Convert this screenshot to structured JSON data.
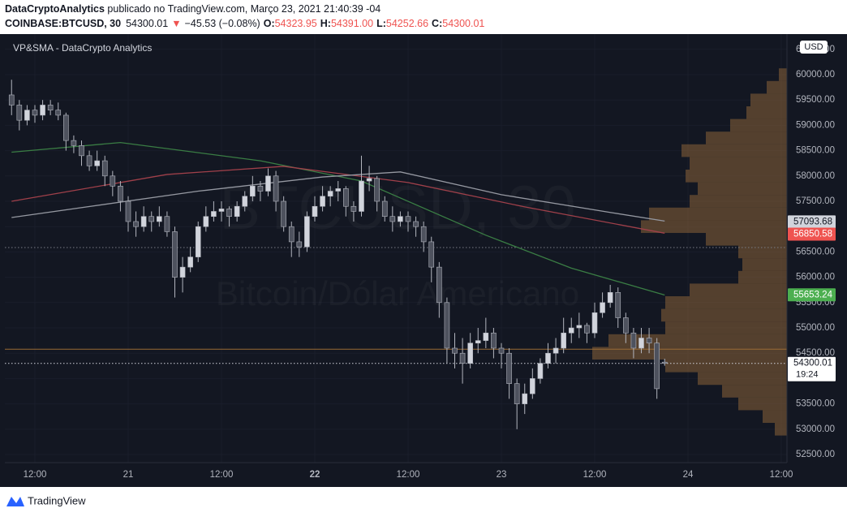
{
  "header": {
    "author": "DataCryptoAnalytics",
    "published": " publicado no TradingView.com, Março 23, 2021 21:40:39 -04",
    "symbol": "COINBASE:BTCUSD, 30",
    "last": "54300.01",
    "change": "−45.53 (−0.08%)",
    "ohlc": [
      {
        "label": "O:",
        "value": "54323.95"
      },
      {
        "label": "H:",
        "value": "54391.00"
      },
      {
        "label": "L:",
        "value": "54252.66"
      },
      {
        "label": "C:",
        "value": "54300.01"
      }
    ],
    "footer": "TradingView"
  },
  "chart_data": {
    "type": "candlestick",
    "title": "VP&SMA - DataCrypto Analytics",
    "watermark": "BTCUSD, 30",
    "watermark_sub": "Bitcoin/Dólar Americano",
    "currency": "USD",
    "countdown": "19:24",
    "up_color": "#d1d4dc",
    "down_color": "#4e525e",
    "x": [
      -3,
      -2,
      -1,
      0,
      1,
      2,
      3,
      4,
      5,
      6,
      7,
      8,
      9,
      10,
      11,
      12,
      13,
      14,
      15,
      16,
      17,
      18,
      19,
      20,
      21,
      22,
      23,
      24,
      25,
      26,
      27,
      28,
      29,
      30,
      31,
      32,
      33,
      34,
      35,
      36,
      37,
      38,
      39,
      40,
      41,
      42,
      43,
      44,
      45,
      46,
      47,
      48,
      49,
      50,
      51,
      52,
      53,
      54,
      55,
      56,
      57,
      58,
      59,
      60,
      61,
      62,
      63,
      64,
      65,
      66,
      67,
      68,
      69,
      70,
      71,
      72,
      73,
      74,
      75,
      76,
      77,
      78,
      79,
      80,
      81
    ],
    "candles": [
      [
        59600,
        59900,
        59200,
        59400
      ],
      [
        59400,
        59500,
        58900,
        59100
      ],
      [
        59100,
        59400,
        59000,
        59300
      ],
      [
        59300,
        59400,
        59050,
        59200
      ],
      [
        59200,
        59500,
        59100,
        59400
      ],
      [
        59400,
        59500,
        59200,
        59300
      ],
      [
        59300,
        59450,
        59100,
        59200
      ],
      [
        59200,
        59250,
        58500,
        58700
      ],
      [
        58700,
        58800,
        58450,
        58600
      ],
      [
        58600,
        58700,
        58200,
        58400
      ],
      [
        58400,
        58500,
        58100,
        58200
      ],
      [
        58200,
        58500,
        58100,
        58300
      ],
      [
        58300,
        58400,
        57800,
        58000
      ],
      [
        58000,
        58100,
        57600,
        57800
      ],
      [
        57800,
        57900,
        57300,
        57500
      ],
      [
        57500,
        57600,
        56900,
        57100
      ],
      [
        57100,
        57300,
        56800,
        57000
      ],
      [
        57000,
        57400,
        56900,
        57200
      ],
      [
        57200,
        57300,
        56900,
        57100
      ],
      [
        57100,
        57400,
        57000,
        57200
      ],
      [
        57200,
        57300,
        56800,
        56900
      ],
      [
        56900,
        57000,
        55600,
        56000
      ],
      [
        56000,
        56400,
        55700,
        56200
      ],
      [
        56200,
        56600,
        56100,
        56400
      ],
      [
        56400,
        57100,
        56300,
        57000
      ],
      [
        57000,
        57400,
        56900,
        57200
      ],
      [
        57200,
        57500,
        57100,
        57300
      ],
      [
        57300,
        57500,
        57100,
        57350
      ],
      [
        57350,
        57400,
        57000,
        57200
      ],
      [
        57200,
        57500,
        57100,
        57400
      ],
      [
        57400,
        57700,
        57300,
        57600
      ],
      [
        57600,
        58000,
        57500,
        57800
      ],
      [
        57800,
        57900,
        57500,
        57700
      ],
      [
        57700,
        58150,
        57600,
        58000
      ],
      [
        58000,
        58100,
        57300,
        57500
      ],
      [
        57500,
        57600,
        56900,
        57000
      ],
      [
        57000,
        57100,
        56400,
        56700
      ],
      [
        56700,
        56900,
        56400,
        56600
      ],
      [
        56600,
        57300,
        56500,
        57200
      ],
      [
        57200,
        57600,
        57100,
        57400
      ],
      [
        57400,
        57800,
        57300,
        57600
      ],
      [
        57600,
        57800,
        57400,
        57700
      ],
      [
        57700,
        57900,
        57500,
        57750
      ],
      [
        57750,
        57800,
        57200,
        57400
      ],
      [
        57400,
        57500,
        57100,
        57300
      ],
      [
        57300,
        58400,
        57200,
        57900
      ],
      [
        57900,
        58200,
        57700,
        57950
      ],
      [
        57950,
        58000,
        57300,
        57500
      ],
      [
        57500,
        57600,
        57100,
        57200
      ],
      [
        57200,
        57400,
        56900,
        57100
      ],
      [
        57100,
        57300,
        57000,
        57200
      ],
      [
        57200,
        57300,
        56900,
        57100
      ],
      [
        57100,
        57200,
        56800,
        57000
      ],
      [
        57000,
        57100,
        56500,
        56700
      ],
      [
        56700,
        56800,
        55900,
        56200
      ],
      [
        56200,
        56300,
        55200,
        55500
      ],
      [
        55500,
        55600,
        54300,
        54600
      ],
      [
        54600,
        54900,
        54200,
        54500
      ],
      [
        54500,
        54800,
        53900,
        54300
      ],
      [
        54300,
        54900,
        54200,
        54700
      ],
      [
        54700,
        55000,
        54500,
        54750
      ],
      [
        54750,
        55200,
        54600,
        54900
      ],
      [
        54900,
        55000,
        54400,
        54600
      ],
      [
        54600,
        54700,
        54200,
        54500
      ],
      [
        54500,
        54600,
        53600,
        53900
      ],
      [
        53900,
        54000,
        53000,
        53500
      ],
      [
        53500,
        53900,
        53300,
        53700
      ],
      [
        53700,
        54200,
        53600,
        54000
      ],
      [
        54000,
        54400,
        53900,
        54300
      ],
      [
        54300,
        54700,
        54200,
        54500
      ],
      [
        54500,
        54800,
        54300,
        54600
      ],
      [
        54600,
        55200,
        54500,
        54900
      ],
      [
        54900,
        55200,
        54700,
        55000
      ],
      [
        55000,
        55300,
        54800,
        55050
      ],
      [
        55050,
        55100,
        54700,
        54900
      ],
      [
        54900,
        55500,
        54800,
        55300
      ],
      [
        55300,
        55700,
        55200,
        55500
      ],
      [
        55500,
        55850,
        55400,
        55700
      ],
      [
        55700,
        55800,
        55000,
        55200
      ],
      [
        55200,
        55300,
        54700,
        54900
      ],
      [
        54900,
        55000,
        54400,
        54600
      ],
      [
        54600,
        55000,
        54500,
        54800
      ],
      [
        54800,
        55000,
        54500,
        54700
      ],
      [
        54700,
        54800,
        53600,
        53800
      ],
      [
        54323.95,
        54391,
        54252.66,
        54300.01
      ]
    ],
    "series": [
      {
        "color": "#3a7d44",
        "x": [
          -3,
          11,
          29,
          42,
          58,
          69,
          81
        ],
        "values": [
          58470,
          58660,
          58300,
          57900,
          56830,
          56180,
          55650
        ]
      },
      {
        "color": "#a0404a",
        "x": [
          -3,
          17,
          32,
          48,
          63,
          81
        ],
        "values": [
          57500,
          58030,
          58190,
          57870,
          57390,
          56870
        ]
      },
      {
        "color": "#9598a1",
        "x": [
          -3,
          21,
          37,
          47,
          60,
          74,
          81
        ],
        "values": [
          57180,
          57700,
          57980,
          58080,
          57630,
          57280,
          57110
        ]
      }
    ],
    "volume_profile": {
      "color": "#8a6238",
      "levels": [
        60000,
        59750,
        59500,
        59250,
        59000,
        58750,
        58500,
        58250,
        58000,
        57750,
        57500,
        57250,
        57000,
        56750,
        56500,
        56250,
        56000,
        55750,
        55500,
        55250,
        55000,
        54750,
        54500,
        54250,
        54000,
        53750,
        53500,
        53250,
        53000
      ],
      "volumes": [
        10,
        25,
        45,
        50,
        70,
        100,
        130,
        120,
        125,
        110,
        120,
        170,
        180,
        100,
        60,
        55,
        60,
        120,
        150,
        155,
        150,
        220,
        240,
        150,
        110,
        80,
        60,
        30,
        15
      ]
    },
    "hlines": [
      {
        "value": 56587,
        "color": "#787b86"
      },
      {
        "value": 54580,
        "color": "#9a6a35"
      },
      {
        "value": 54300.01,
        "color": "#d1d4dc"
      }
    ],
    "price_labels": [
      {
        "value": 57093.68,
        "color": "#d1d4dc",
        "text_color": "#131722"
      },
      {
        "value": 56850.58,
        "color": "#ef5350",
        "text_color": "#ffffff"
      },
      {
        "value": 55653.24,
        "color": "#4caf50",
        "text_color": "#ffffff"
      },
      {
        "value": 54300.01,
        "color": "#ffffff",
        "text_color": "#131722"
      }
    ],
    "xlim": [
      -3.86,
      96.73
    ],
    "ylim": [
      52340,
      60750
    ],
    "xticks": [
      {
        "value": 0,
        "label": "12:00"
      },
      {
        "value": 12,
        "label": "21"
      },
      {
        "value": 24,
        "label": "12:00"
      },
      {
        "value": 36,
        "label": "22",
        "bold": true
      },
      {
        "value": 48,
        "label": "12:00"
      },
      {
        "value": 60,
        "label": "23"
      },
      {
        "value": 72,
        "label": "12:00"
      },
      {
        "value": 84,
        "label": "24"
      },
      {
        "value": 96,
        "label": "12:00"
      }
    ],
    "yticks": [
      {
        "value": 52500,
        "label": "52500.00"
      },
      {
        "value": 53000,
        "label": "53000.00"
      },
      {
        "value": 53500,
        "label": "53500.00"
      },
      {
        "value": 54000,
        "label": "54000.00"
      },
      {
        "value": 54500,
        "label": "54500.00"
      },
      {
        "value": 55000,
        "label": "55000.00"
      },
      {
        "value": 55500,
        "label": "55500.00"
      },
      {
        "value": 56000,
        "label": "56000.00"
      },
      {
        "value": 56500,
        "label": "56500.00"
      },
      {
        "value": 57000,
        "label": "57000.00"
      },
      {
        "value": 57500,
        "label": "57500.00"
      },
      {
        "value": 58000,
        "label": "58000.00"
      },
      {
        "value": 58500,
        "label": "58500.00"
      },
      {
        "value": 59000,
        "label": "59000.00"
      },
      {
        "value": 59500,
        "label": "59500.00"
      },
      {
        "value": 60000,
        "label": "60000.00"
      },
      {
        "value": 60500,
        "label": "60500.00"
      }
    ],
    "grid": true
  }
}
